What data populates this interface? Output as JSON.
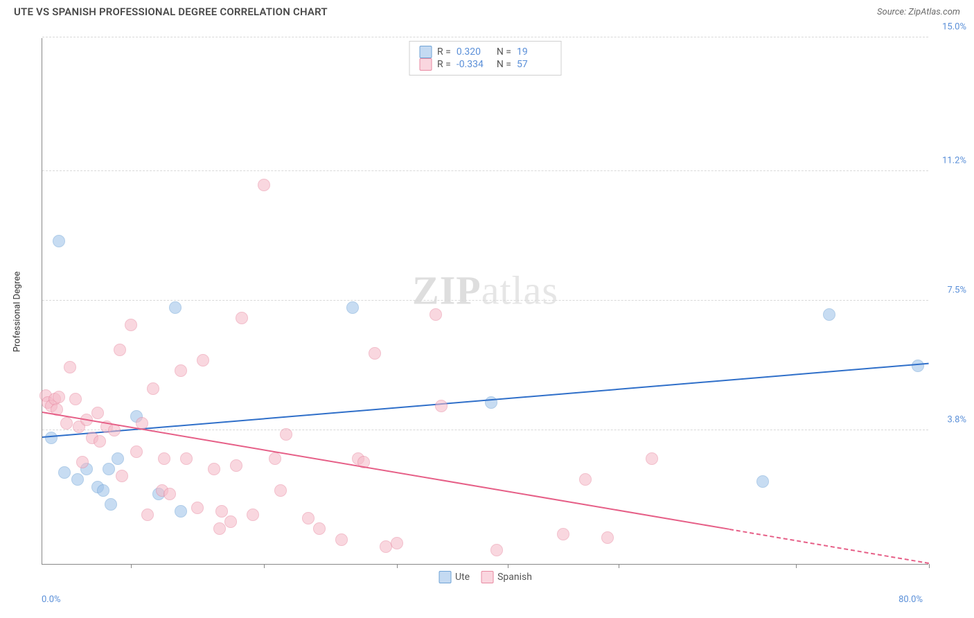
{
  "title": "UTE VS SPANISH PROFESSIONAL DEGREE CORRELATION CHART",
  "source": "Source: ZipAtlas.com",
  "ylabel": "Professional Degree",
  "watermark_bold": "ZIP",
  "watermark_light": "atlas",
  "chart": {
    "type": "scatter",
    "background_color": "#ffffff",
    "grid_color": "#d8d8d8",
    "axis_color": "#888888",
    "label_fontsize": 13,
    "title_fontsize": 15,
    "xlim": [
      0,
      80
    ],
    "ylim": [
      0,
      15
    ],
    "yticks": [
      {
        "value": 3.8,
        "label": "3.8%"
      },
      {
        "value": 7.5,
        "label": "7.5%"
      },
      {
        "value": 11.2,
        "label": "11.2%"
      },
      {
        "value": 15.0,
        "label": "15.0%"
      }
    ],
    "xticks": [
      8,
      20,
      32,
      42,
      52,
      68,
      80
    ],
    "xaxis_labels": {
      "left": "0.0%",
      "right": "80.0%"
    },
    "marker_radius": 9,
    "marker_opacity": 0.55,
    "series": [
      {
        "name": "Ute",
        "color": "#9bc0e8",
        "border": "#6fa3d6",
        "R": "0.320",
        "N": "19",
        "trend": {
          "x1": 0,
          "y1": 3.6,
          "x2": 80,
          "y2": 5.7,
          "color": "#2f6fc9",
          "dash_after_x": null
        },
        "points": [
          {
            "x": 0.8,
            "y": 3.6
          },
          {
            "x": 1.5,
            "y": 9.2
          },
          {
            "x": 2.0,
            "y": 2.6
          },
          {
            "x": 3.2,
            "y": 2.4
          },
          {
            "x": 4.0,
            "y": 2.7
          },
          {
            "x": 5.0,
            "y": 2.2
          },
          {
            "x": 5.5,
            "y": 2.1
          },
          {
            "x": 6.0,
            "y": 2.7
          },
          {
            "x": 6.2,
            "y": 1.7
          },
          {
            "x": 6.8,
            "y": 3.0
          },
          {
            "x": 8.5,
            "y": 4.2
          },
          {
            "x": 10.5,
            "y": 2.0
          },
          {
            "x": 12.0,
            "y": 7.3
          },
          {
            "x": 12.5,
            "y": 1.5
          },
          {
            "x": 28.0,
            "y": 7.3
          },
          {
            "x": 40.5,
            "y": 4.6
          },
          {
            "x": 65.0,
            "y": 2.35
          },
          {
            "x": 71.0,
            "y": 7.1
          },
          {
            "x": 79.0,
            "y": 5.65
          }
        ]
      },
      {
        "name": "Spanish",
        "color": "#f5b8c6",
        "border": "#e88aa2",
        "R": "-0.334",
        "N": "57",
        "trend": {
          "x1": 0,
          "y1": 4.3,
          "x2": 80,
          "y2": 0.0,
          "color": "#e65f87",
          "dash_after_x": 62
        },
        "points": [
          {
            "x": 0.3,
            "y": 4.8
          },
          {
            "x": 0.5,
            "y": 4.6
          },
          {
            "x": 0.8,
            "y": 4.5
          },
          {
            "x": 1.1,
            "y": 4.7
          },
          {
            "x": 1.3,
            "y": 4.4
          },
          {
            "x": 1.5,
            "y": 4.75
          },
          {
            "x": 2.2,
            "y": 4.0
          },
          {
            "x": 2.5,
            "y": 5.6
          },
          {
            "x": 3.0,
            "y": 4.7
          },
          {
            "x": 3.3,
            "y": 3.9
          },
          {
            "x": 3.6,
            "y": 2.9
          },
          {
            "x": 4.0,
            "y": 4.1
          },
          {
            "x": 4.5,
            "y": 3.6
          },
          {
            "x": 5.0,
            "y": 4.3
          },
          {
            "x": 5.2,
            "y": 3.5
          },
          {
            "x": 5.8,
            "y": 3.9
          },
          {
            "x": 6.5,
            "y": 3.8
          },
          {
            "x": 7.0,
            "y": 6.1
          },
          {
            "x": 7.2,
            "y": 2.5
          },
          {
            "x": 8.0,
            "y": 6.8
          },
          {
            "x": 8.5,
            "y": 3.2
          },
          {
            "x": 9.0,
            "y": 4.0
          },
          {
            "x": 9.5,
            "y": 1.4
          },
          {
            "x": 10.0,
            "y": 5.0
          },
          {
            "x": 10.8,
            "y": 2.1
          },
          {
            "x": 11.0,
            "y": 3.0
          },
          {
            "x": 11.5,
            "y": 2.0
          },
          {
            "x": 12.5,
            "y": 5.5
          },
          {
            "x": 13.0,
            "y": 3.0
          },
          {
            "x": 14.0,
            "y": 1.6
          },
          {
            "x": 14.5,
            "y": 5.8
          },
          {
            "x": 15.5,
            "y": 2.7
          },
          {
            "x": 16.0,
            "y": 1.0
          },
          {
            "x": 16.2,
            "y": 1.5
          },
          {
            "x": 17.0,
            "y": 1.2
          },
          {
            "x": 17.5,
            "y": 2.8
          },
          {
            "x": 18.0,
            "y": 7.0
          },
          {
            "x": 19.0,
            "y": 1.4
          },
          {
            "x": 20.0,
            "y": 10.8
          },
          {
            "x": 21.0,
            "y": 3.0
          },
          {
            "x": 21.5,
            "y": 2.1
          },
          {
            "x": 22.0,
            "y": 3.7
          },
          {
            "x": 24.0,
            "y": 1.3
          },
          {
            "x": 25.0,
            "y": 1.0
          },
          {
            "x": 27.0,
            "y": 0.7
          },
          {
            "x": 28.5,
            "y": 3.0
          },
          {
            "x": 29.0,
            "y": 2.9
          },
          {
            "x": 30.0,
            "y": 6.0
          },
          {
            "x": 31.0,
            "y": 0.5
          },
          {
            "x": 32.0,
            "y": 0.6
          },
          {
            "x": 35.5,
            "y": 7.1
          },
          {
            "x": 36.0,
            "y": 4.5
          },
          {
            "x": 41.0,
            "y": 0.4
          },
          {
            "x": 47.0,
            "y": 0.85
          },
          {
            "x": 49.0,
            "y": 2.4
          },
          {
            "x": 51.0,
            "y": 0.75
          },
          {
            "x": 55.0,
            "y": 3.0
          }
        ]
      }
    ]
  },
  "legend_top": [
    {
      "swatch_fill": "#c4daf2",
      "swatch_border": "#6fa3d6",
      "R": "0.320",
      "N": "19"
    },
    {
      "swatch_fill": "#fad6df",
      "swatch_border": "#e88aa2",
      "R": "-0.334",
      "N": "57"
    }
  ],
  "legend_bottom": [
    {
      "label": "Ute",
      "swatch_fill": "#c4daf2",
      "swatch_border": "#6fa3d6"
    },
    {
      "label": "Spanish",
      "swatch_fill": "#fad6df",
      "swatch_border": "#e88aa2"
    }
  ]
}
